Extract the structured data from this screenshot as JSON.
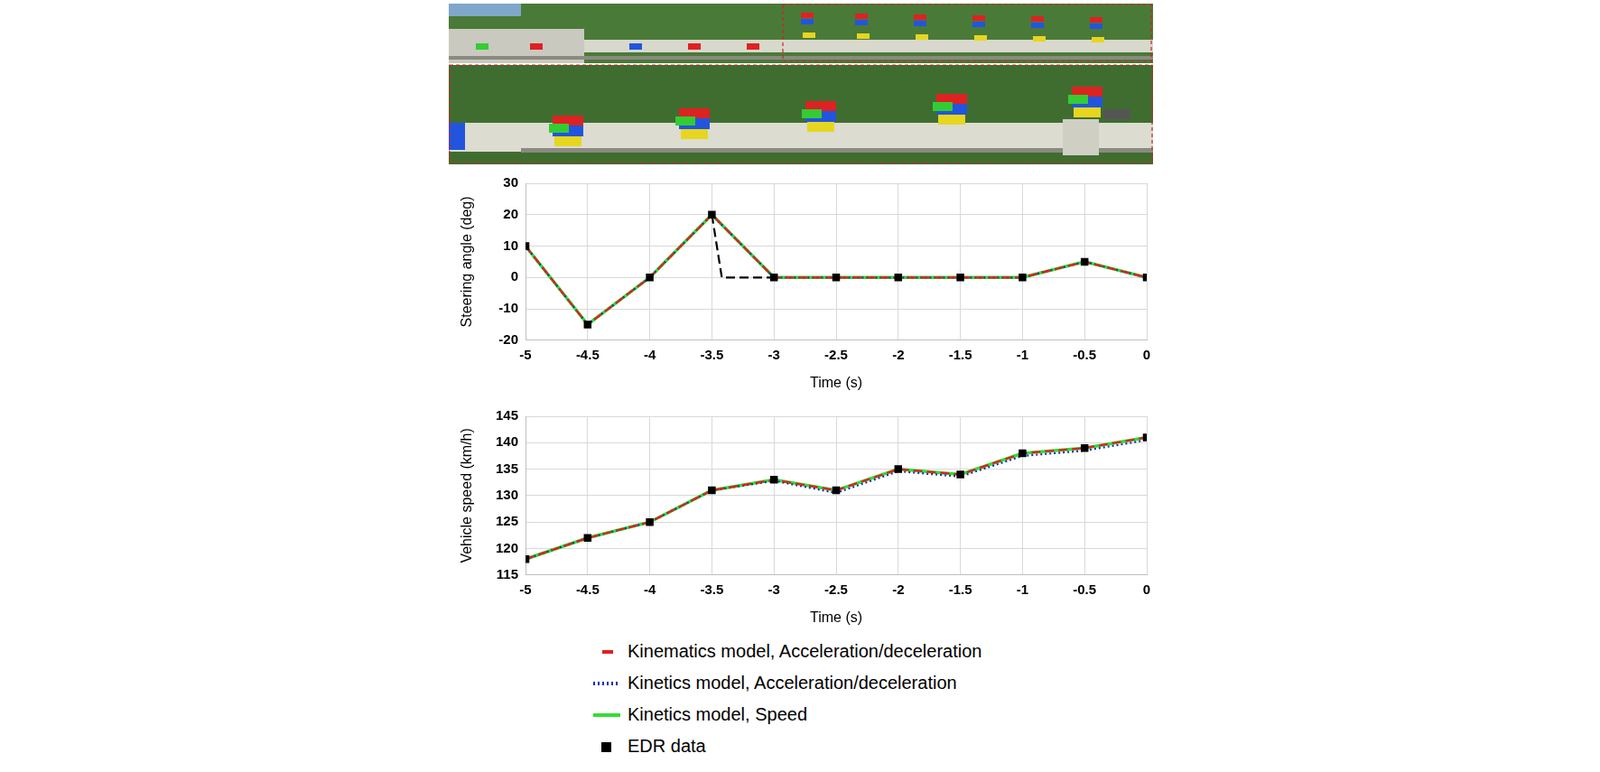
{
  "chart_data": [
    {
      "type": "line",
      "x_label": "Time (s)",
      "y_label": "Steering angle (deg)",
      "xlim": [
        -5,
        0
      ],
      "xticks": [
        -5,
        -4.5,
        -4,
        -3.5,
        -3,
        -2.5,
        -2,
        -1.5,
        -1,
        -0.5,
        0
      ],
      "ylim": [
        -20,
        30
      ],
      "yticks": [
        -20,
        -10,
        0,
        10,
        20,
        30
      ],
      "grid": true,
      "series": [
        {
          "name": "Kinematics model, Acceleration/deceleration",
          "color": "#e02020",
          "line_style": "dashed",
          "x": [
            -5,
            -4.5,
            -4,
            -3.5,
            -3,
            -2.5,
            -2,
            -1.5,
            -1,
            -0.5,
            0
          ],
          "values": [
            10,
            -15,
            0,
            20,
            0,
            0,
            0,
            0,
            0,
            5,
            0
          ]
        },
        {
          "name": "Kinetics model, Acceleration/deceleration",
          "color": "#1a2fb0",
          "line_style": "dotted",
          "x": [
            -5,
            -4.5,
            -4,
            -3.5,
            -3,
            -2.5,
            -2,
            -1.5,
            -1,
            -0.5,
            0
          ],
          "values": [
            10,
            -15,
            0,
            20,
            0,
            0,
            0,
            0,
            0,
            5,
            0
          ]
        },
        {
          "name": "Kinetics model, Speed",
          "color": "#33dd33",
          "line_style": "solid",
          "x": [
            -5,
            -4.5,
            -4,
            -3.5,
            -3,
            -2.5,
            -2,
            -1.5,
            -1,
            -0.5,
            0
          ],
          "values": [
            10,
            -15,
            0,
            20,
            0,
            0,
            0,
            0,
            0,
            5,
            0
          ]
        },
        {
          "color": "#000000",
          "line_style": "dashed",
          "x": [
            -3.5,
            -3.42,
            -3
          ],
          "values": [
            20,
            0,
            0
          ]
        },
        {
          "name": "EDR data",
          "color": "#000000",
          "marker": "square",
          "line_style": "none",
          "x": [
            -5,
            -4.5,
            -4,
            -3.5,
            -3,
            -2.5,
            -2,
            -1.5,
            -1,
            -0.5,
            0
          ],
          "values": [
            10,
            -15,
            0,
            20,
            0,
            0,
            0,
            0,
            0,
            5,
            0
          ]
        }
      ]
    },
    {
      "type": "line",
      "x_label": "Time (s)",
      "y_label": "Vehicle speed (km/h)",
      "xlim": [
        -5,
        0
      ],
      "xticks": [
        -5,
        -4.5,
        -4,
        -3.5,
        -3,
        -2.5,
        -2,
        -1.5,
        -1,
        -0.5,
        0
      ],
      "ylim": [
        115,
        145
      ],
      "yticks": [
        115,
        120,
        125,
        130,
        135,
        140,
        145
      ],
      "grid": true,
      "legend": "bottom",
      "series": [
        {
          "name": "Kinematics model, Acceleration/deceleration",
          "color": "#e02020",
          "line_style": "dashed",
          "x": [
            -5,
            -4.5,
            -4,
            -3.5,
            -3,
            -2.5,
            -2,
            -1.5,
            -1,
            -0.5,
            0
          ],
          "values": [
            118,
            122,
            125,
            131,
            133,
            131,
            135,
            134,
            138,
            139,
            141
          ]
        },
        {
          "name": "Kinetics model, Acceleration/deceleration",
          "color": "#1a2fb0",
          "line_style": "dotted",
          "x": [
            -5,
            -4.5,
            -4,
            -3.5,
            -3,
            -2.5,
            -2,
            -1.5,
            -1,
            -0.5,
            0
          ],
          "values": [
            118,
            122,
            125,
            131,
            132.8,
            130.5,
            134.6,
            133.6,
            137.5,
            138.5,
            140.5
          ]
        },
        {
          "name": "Kinetics model, Speed",
          "color": "#33dd33",
          "line_style": "solid",
          "x": [
            -5,
            -4.5,
            -4,
            -3.5,
            -3,
            -2.5,
            -2,
            -1.5,
            -1,
            -0.5,
            0
          ],
          "values": [
            118,
            122,
            125,
            131,
            133,
            131,
            135,
            134,
            138,
            139,
            141
          ]
        },
        {
          "name": "EDR data",
          "color": "#000000",
          "marker": "square",
          "line_style": "none",
          "x": [
            -5,
            -4.5,
            -4,
            -3.5,
            -3,
            -2.5,
            -2,
            -1.5,
            -1,
            -0.5,
            0
          ],
          "values": [
            118,
            122,
            125,
            131,
            133,
            131,
            135,
            134,
            138,
            139,
            141
          ]
        }
      ]
    }
  ]
}
